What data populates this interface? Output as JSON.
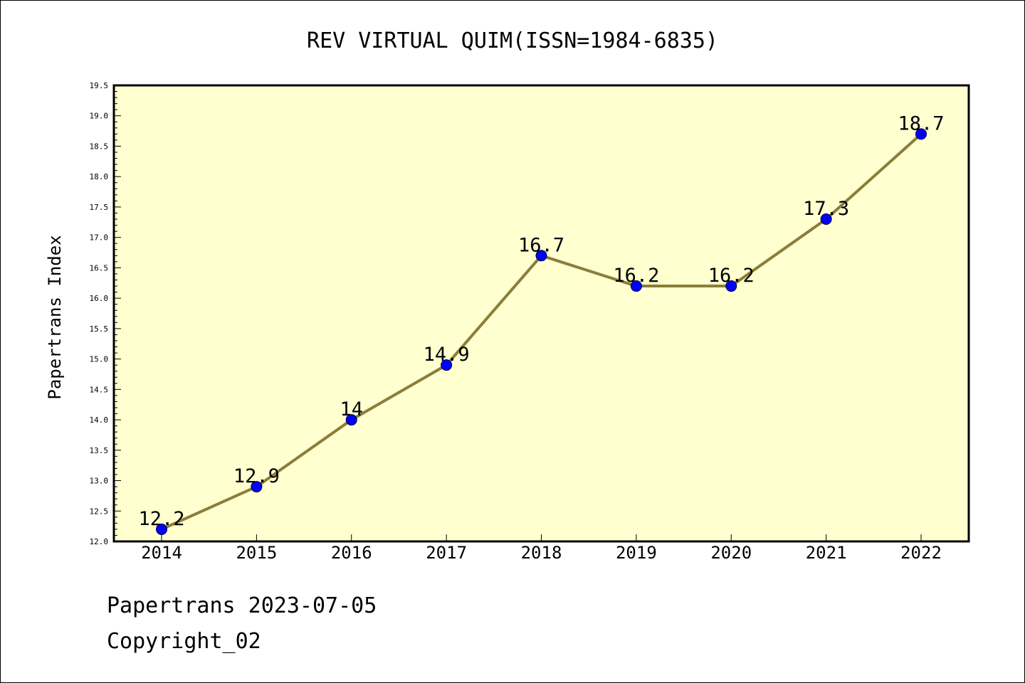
{
  "chart_data": {
    "type": "line",
    "title": "REV VIRTUAL QUIM(ISSN=1984-6835)",
    "xlabel": "",
    "ylabel": "Papertrans Index",
    "categories": [
      "2014",
      "2015",
      "2016",
      "2017",
      "2018",
      "2019",
      "2020",
      "2021",
      "2022"
    ],
    "series": [
      {
        "values": [
          12.2,
          12.9,
          14.0,
          14.9,
          16.7,
          16.2,
          16.2,
          17.3,
          18.7
        ],
        "labels": [
          "12.2",
          "12.9",
          "14",
          "14.9",
          "16.7",
          "16.2",
          "16.2",
          "17.3",
          "18.7"
        ],
        "line_color": "#8b7d3a",
        "marker_color": "#0000ff"
      }
    ],
    "ylim": [
      12.0,
      19.5
    ],
    "yticks": [
      "12.0",
      "12.5",
      "13.0",
      "13.5",
      "14.0",
      "14.5",
      "15.0",
      "15.5",
      "16.0",
      "16.5",
      "17.0",
      "17.5",
      "18.0",
      "18.5",
      "19.0",
      "19.5"
    ],
    "plot_background": "#ffffd0",
    "grid": false,
    "legend": "none"
  },
  "footer": {
    "line1": "Papertrans 2023-07-05",
    "line2": "Copyright_02"
  }
}
